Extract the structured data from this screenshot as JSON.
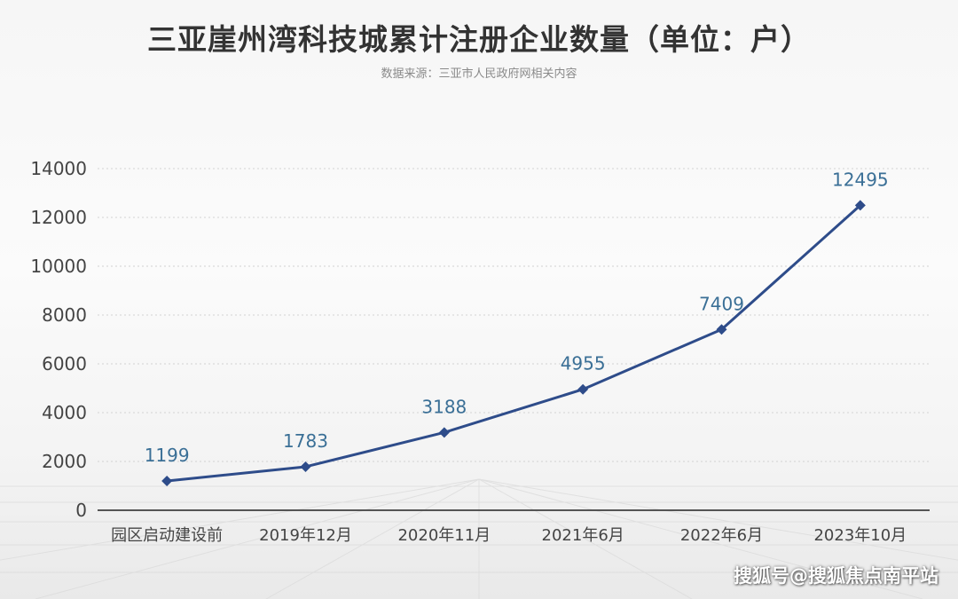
{
  "header": {
    "title": "三亚崖州湾科技城累计注册企业数量（单位：户）",
    "subtitle": "数据来源：三亚市人民政府网相关内容"
  },
  "watermark": "搜狐号@搜狐焦点南平站",
  "colors": {
    "line": "#2e4c8a",
    "data_label": "#3a6f96",
    "axis_text": "#444444",
    "grid": "#d2d2d2",
    "title": "#333333"
  },
  "chart_data": {
    "type": "line",
    "title": "三亚崖州湾科技城累计注册企业数量（单位：户）",
    "xlabel": "",
    "ylabel": "",
    "categories": [
      "园区启动建设前",
      "2019年12月",
      "2020年11月",
      "2021年6月",
      "2022年6月",
      "2023年10月"
    ],
    "series": [
      {
        "values": [
          1199,
          1783,
          3188,
          4955,
          7409,
          12495
        ]
      }
    ],
    "ylim": [
      0,
      14000
    ],
    "yticks": [
      0,
      2000,
      4000,
      6000,
      8000,
      10000,
      12000,
      14000
    ],
    "grid": true,
    "grid_style": "dotted-horizontal",
    "marker": "diamond",
    "data_labels": true,
    "legend": "none"
  }
}
